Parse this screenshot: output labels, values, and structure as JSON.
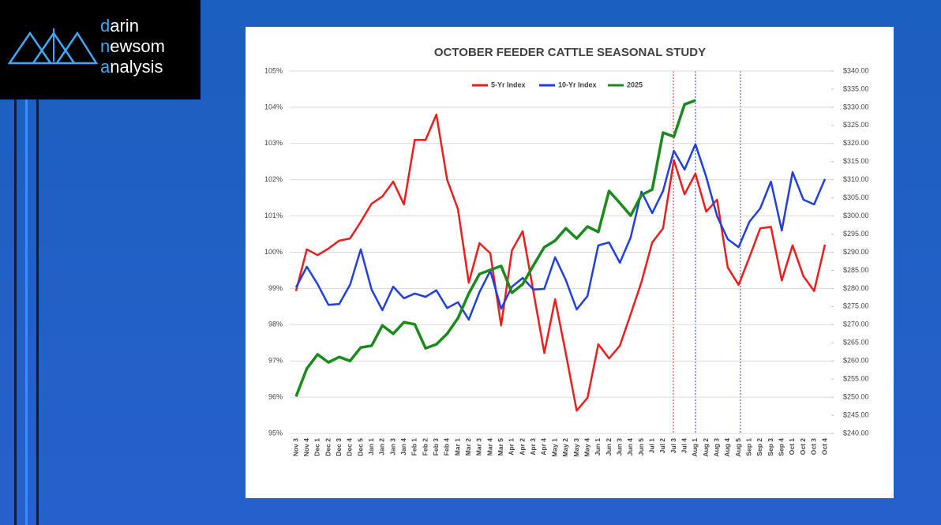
{
  "logo": [
    "darin",
    "newsom",
    "analysis"
  ],
  "chart_data": {
    "type": "line",
    "title": "OCTOBER FEEDER CATTLE SEASONAL STUDY",
    "categories": [
      "Nov 3",
      "Nov 4",
      "Dec 1",
      "Dec 2",
      "Dec 3",
      "Dec 4",
      "Dec 5",
      "Jan 1",
      "Jan 2",
      "Jan 3",
      "Jan 4",
      "Feb 1",
      "Feb 2",
      "Feb 3",
      "Feb 4",
      "Mar 1",
      "Mar 2",
      "Mar 3",
      "Mar 4",
      "Mar 5",
      "Apr 1",
      "Apr 2",
      "Apr 3",
      "Apr 4",
      "May 1",
      "May 2",
      "May 3",
      "May 4",
      "Jun 1",
      "Jun 2",
      "Jun 3",
      "Jun 4",
      "Jun 5",
      "Jul 1",
      "Jul 2",
      "Jul 3",
      "Jul 4",
      "Aug 1",
      "Aug 2",
      "Aug 3",
      "Aug 4",
      "Aug 5",
      "Sep 1",
      "Sep 2",
      "Sep 3",
      "Sep 4",
      "Oct 1",
      "Oct 2",
      "Oct 3",
      "Oct 4"
    ],
    "series": [
      {
        "name": "5-Yr Index",
        "color": "#ee1c1c",
        "values": [
          98.93,
          100.08,
          99.92,
          100.1,
          100.32,
          100.38,
          100.84,
          101.34,
          101.54,
          101.95,
          101.32,
          103.1,
          103.1,
          103.8,
          102.0,
          101.19,
          99.16,
          100.25,
          99.97,
          97.98,
          100.05,
          100.58,
          98.9,
          97.22,
          98.7,
          97.2,
          95.63,
          95.98,
          97.46,
          97.07,
          97.42,
          98.29,
          99.18,
          100.27,
          100.66,
          102.54,
          101.6,
          102.17,
          101.12,
          101.45,
          99.58,
          99.1,
          99.86,
          100.66,
          100.7,
          99.22,
          100.19,
          99.34,
          98.93,
          100.21
        ]
      },
      {
        "name": "10-Yr Index",
        "color": "#1f3fe0",
        "values": [
          99.03,
          99.6,
          99.12,
          98.55,
          98.57,
          99.1,
          100.08,
          98.97,
          98.4,
          99.05,
          98.73,
          98.86,
          98.77,
          98.95,
          98.46,
          98.62,
          98.14,
          98.9,
          99.49,
          98.44,
          99.05,
          99.29,
          98.97,
          98.99,
          99.86,
          99.23,
          98.42,
          98.79,
          100.19,
          100.27,
          99.71,
          100.41,
          101.67,
          101.08,
          101.69,
          102.8,
          102.28,
          102.98,
          102.08,
          101.0,
          100.36,
          100.14,
          100.84,
          101.21,
          101.95,
          100.6,
          102.21,
          101.45,
          101.32,
          102.02
        ]
      },
      {
        "name": "2025",
        "color": "#1a8a1a",
        "axis": "y2",
        "values": [
          250.2,
          257.9,
          261.8,
          259.6,
          261.1,
          260.0,
          263.7,
          264.2,
          269.8,
          267.5,
          270.7,
          270.1,
          263.5,
          264.6,
          267.5,
          271.8,
          278.6,
          284.0,
          285.1,
          286.2,
          278.8,
          281.2,
          286.4,
          291.4,
          293.2,
          296.6,
          293.8,
          297.1,
          295.6,
          306.9,
          303.6,
          300.1,
          305.8,
          307.3,
          323.0,
          321.9,
          330.8,
          331.9,
          null,
          null,
          null,
          null,
          null,
          null,
          null,
          null,
          null,
          null,
          null,
          null
        ]
      }
    ],
    "ylim": [
      95,
      105
    ],
    "yticks": [
      {
        "value": 95,
        "label": "95%"
      },
      {
        "value": 96,
        "label": "96%"
      },
      {
        "value": 97,
        "label": "97%"
      },
      {
        "value": 98,
        "label": "98%"
      },
      {
        "value": 99,
        "label": "99%"
      },
      {
        "value": 100,
        "label": "100%"
      },
      {
        "value": 101,
        "label": "101%"
      },
      {
        "value": 102,
        "label": "102%"
      },
      {
        "value": 103,
        "label": "103%"
      },
      {
        "value": 104,
        "label": "104%"
      },
      {
        "value": 105,
        "label": "105%"
      }
    ],
    "y2lim": [
      240,
      340
    ],
    "y2ticks": [
      {
        "value": 240,
        "label": "$240.00"
      },
      {
        "value": 245,
        "label": "$245.00"
      },
      {
        "value": 250,
        "label": "$250.00"
      },
      {
        "value": 255,
        "label": "$255.00"
      },
      {
        "value": 260,
        "label": "$260.00"
      },
      {
        "value": 265,
        "label": "$265.00"
      },
      {
        "value": 270,
        "label": "$270.00"
      },
      {
        "value": 275,
        "label": "$275.00"
      },
      {
        "value": 280,
        "label": "$280.00"
      },
      {
        "value": 285,
        "label": "$285.00"
      },
      {
        "value": 290,
        "label": "$290.00"
      },
      {
        "value": 295,
        "label": "$295.00"
      },
      {
        "value": 300,
        "label": "$300.00"
      },
      {
        "value": 305,
        "label": "$305.00"
      },
      {
        "value": 310,
        "label": "$310.00"
      },
      {
        "value": 315,
        "label": "$315.00"
      },
      {
        "value": 320,
        "label": "$320.00"
      },
      {
        "value": 325,
        "label": "$325.00"
      },
      {
        "value": 330,
        "label": "$330.00"
      },
      {
        "value": 335,
        "label": "$335.00"
      },
      {
        "value": 340,
        "label": "$340.00"
      }
    ],
    "grid": true,
    "legend": "top"
  }
}
